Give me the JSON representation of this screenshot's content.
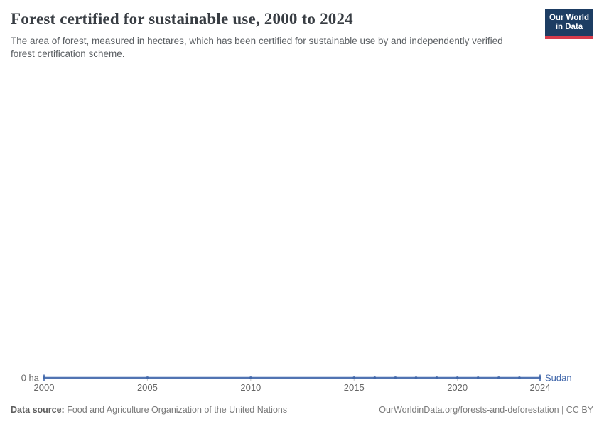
{
  "header": {
    "title": "Forest certified for sustainable use, 2000 to 2024",
    "subtitle": "The area of forest, measured in hectares, which has been certified for sustainable use by and independently verified forest certification scheme."
  },
  "logo": {
    "line1": "Our World",
    "line2": "in Data",
    "bg_color": "#1d3d63",
    "accent_color": "#d73c4c"
  },
  "chart_data": {
    "type": "line",
    "title": "Forest certified for sustainable use, 2000 to 2024",
    "xlabel": "",
    "ylabel": "",
    "unit": "ha",
    "x": [
      2000,
      2005,
      2010,
      2015,
      2016,
      2017,
      2018,
      2019,
      2020,
      2021,
      2022,
      2023,
      2024
    ],
    "series": [
      {
        "name": "Sudan",
        "color": "#4268ab",
        "halo_color": "#bccbe6",
        "values": [
          0,
          0,
          0,
          0,
          0,
          0,
          0,
          0,
          0,
          0,
          0,
          0,
          0
        ]
      }
    ],
    "x_ticks": [
      2000,
      2005,
      2010,
      2015,
      2020,
      2024
    ],
    "xlim": [
      2000,
      2024
    ],
    "ylim": [
      0,
      0
    ],
    "y_zero_label": "0 ha",
    "grid": false,
    "legend_position": "end-of-line",
    "tick_color": "#666666"
  },
  "footer": {
    "datasource_label": "Data source:",
    "datasource_text": " Food and Agriculture Organization of the United Nations",
    "rights": "OurWorldinData.org/forests-and-deforestation | CC BY"
  }
}
